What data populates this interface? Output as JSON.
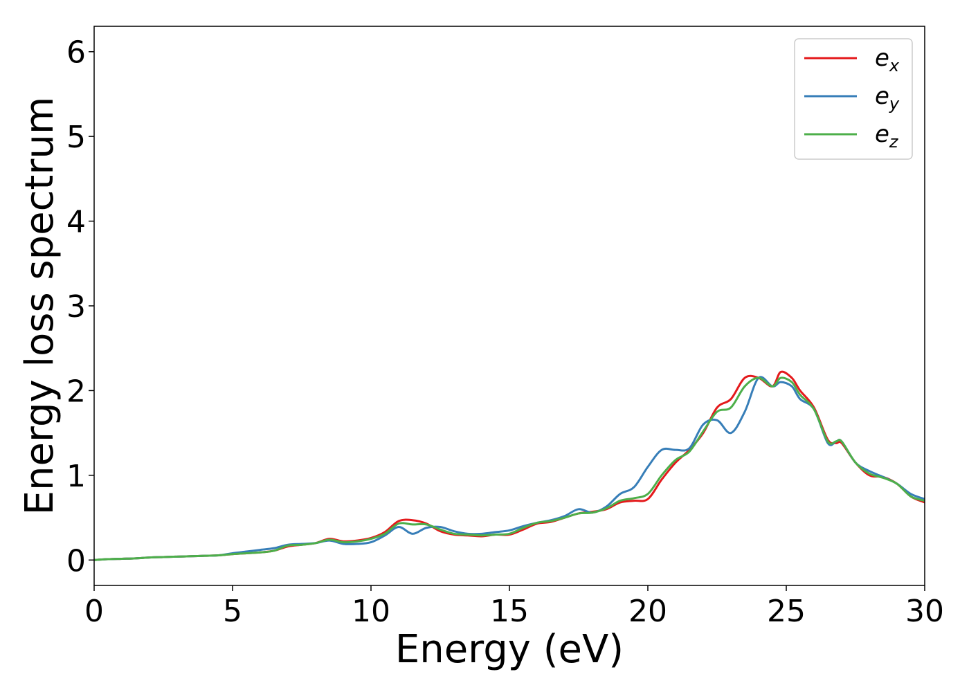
{
  "chart_data": {
    "type": "line",
    "xlabel": "Energy (eV)",
    "ylabel": "Energy loss spectrum",
    "xlim": [
      0,
      30
    ],
    "ylim": [
      -0.3,
      6.3
    ],
    "xticks": [
      0,
      5,
      10,
      15,
      20,
      25,
      30
    ],
    "yticks": [
      0,
      1,
      2,
      3,
      4,
      5,
      6
    ],
    "grid": false,
    "legend_position": "top-right",
    "series": [
      {
        "name": "e_x",
        "legend_base": "e",
        "legend_sub": "x",
        "color": "#e41a1c",
        "x": [
          0,
          0.5,
          1,
          1.5,
          2,
          2.5,
          3,
          3.5,
          4,
          4.5,
          5,
          5.5,
          6,
          6.5,
          7,
          7.5,
          8,
          8.5,
          9,
          9.5,
          10,
          10.5,
          11,
          11.5,
          12,
          12.5,
          13,
          13.5,
          14,
          14.5,
          15,
          15.5,
          16,
          16.5,
          17,
          17.5,
          18,
          18.5,
          19,
          19.5,
          20,
          20.5,
          21,
          21.5,
          22,
          22.5,
          23,
          23.5,
          24,
          24.5,
          24.8,
          25.2,
          25.5,
          26,
          26.5,
          26.8,
          27,
          27.5,
          28,
          28.5,
          29,
          29.5,
          30
        ],
        "y": [
          0,
          0.01,
          0.015,
          0.02,
          0.03,
          0.035,
          0.04,
          0.045,
          0.05,
          0.055,
          0.07,
          0.08,
          0.09,
          0.11,
          0.16,
          0.18,
          0.2,
          0.25,
          0.22,
          0.23,
          0.26,
          0.33,
          0.46,
          0.47,
          0.43,
          0.34,
          0.3,
          0.29,
          0.28,
          0.3,
          0.3,
          0.36,
          0.43,
          0.45,
          0.5,
          0.55,
          0.57,
          0.6,
          0.68,
          0.7,
          0.72,
          0.95,
          1.15,
          1.3,
          1.5,
          1.8,
          1.9,
          2.15,
          2.15,
          2.05,
          2.22,
          2.15,
          2.0,
          1.8,
          1.42,
          1.38,
          1.38,
          1.15,
          1.0,
          0.98,
          0.9,
          0.75,
          0.68
        ]
      },
      {
        "name": "e_y",
        "legend_base": "e",
        "legend_sub": "y",
        "color": "#377eb8",
        "x": [
          0,
          0.5,
          1,
          1.5,
          2,
          2.5,
          3,
          3.5,
          4,
          4.5,
          5,
          5.5,
          6,
          6.5,
          7,
          7.5,
          8,
          8.5,
          9,
          9.5,
          10,
          10.5,
          11,
          11.5,
          12,
          12.5,
          13,
          13.5,
          14,
          14.5,
          15,
          15.5,
          16,
          16.5,
          17,
          17.5,
          18,
          18.5,
          19,
          19.5,
          20,
          20.5,
          21,
          21.5,
          22,
          22.5,
          23,
          23.5,
          24,
          24.5,
          24.8,
          25.2,
          25.5,
          26,
          26.5,
          26.8,
          27,
          27.5,
          28,
          28.5,
          29,
          29.5,
          30
        ],
        "y": [
          0,
          0.01,
          0.015,
          0.02,
          0.03,
          0.035,
          0.04,
          0.045,
          0.05,
          0.055,
          0.08,
          0.1,
          0.12,
          0.14,
          0.18,
          0.19,
          0.2,
          0.23,
          0.19,
          0.19,
          0.21,
          0.29,
          0.39,
          0.31,
          0.38,
          0.39,
          0.34,
          0.31,
          0.31,
          0.33,
          0.35,
          0.4,
          0.44,
          0.47,
          0.52,
          0.6,
          0.56,
          0.63,
          0.78,
          0.86,
          1.1,
          1.3,
          1.3,
          1.32,
          1.6,
          1.65,
          1.5,
          1.75,
          2.15,
          2.05,
          2.1,
          2.05,
          1.9,
          1.78,
          1.38,
          1.4,
          1.4,
          1.15,
          1.05,
          0.98,
          0.9,
          0.78,
          0.72
        ]
      },
      {
        "name": "e_z",
        "legend_base": "e",
        "legend_sub": "z",
        "color": "#4daf4a",
        "x": [
          0,
          0.5,
          1,
          1.5,
          2,
          2.5,
          3,
          3.5,
          4,
          4.5,
          5,
          5.5,
          6,
          6.5,
          7,
          7.5,
          8,
          8.5,
          9,
          9.5,
          10,
          10.5,
          11,
          11.5,
          12,
          12.5,
          13,
          13.5,
          14,
          14.5,
          15,
          15.5,
          16,
          16.5,
          17,
          17.5,
          18,
          18.5,
          19,
          19.5,
          20,
          20.5,
          21,
          21.5,
          22,
          22.5,
          23,
          23.5,
          24,
          24.5,
          24.8,
          25.2,
          25.5,
          26,
          26.5,
          26.8,
          27,
          27.5,
          28,
          28.5,
          29,
          29.5,
          30
        ],
        "y": [
          0,
          0.01,
          0.015,
          0.02,
          0.03,
          0.035,
          0.04,
          0.045,
          0.05,
          0.055,
          0.07,
          0.08,
          0.09,
          0.11,
          0.17,
          0.18,
          0.2,
          0.24,
          0.21,
          0.22,
          0.25,
          0.31,
          0.43,
          0.42,
          0.42,
          0.36,
          0.31,
          0.3,
          0.29,
          0.3,
          0.31,
          0.38,
          0.44,
          0.46,
          0.5,
          0.55,
          0.56,
          0.61,
          0.7,
          0.73,
          0.78,
          1.0,
          1.18,
          1.28,
          1.52,
          1.75,
          1.8,
          2.05,
          2.15,
          2.05,
          2.15,
          2.1,
          1.95,
          1.78,
          1.4,
          1.4,
          1.4,
          1.15,
          1.02,
          0.97,
          0.9,
          0.75,
          0.7
        ]
      }
    ]
  }
}
